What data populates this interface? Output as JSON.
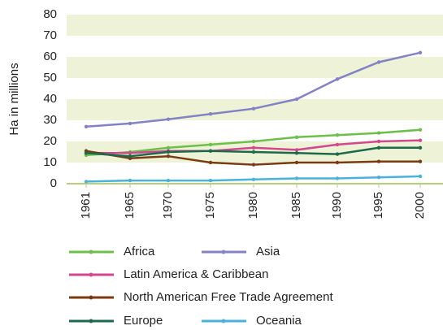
{
  "chart_data": {
    "type": "line",
    "y_label": "Ha in millions",
    "categories": [
      "1961",
      "1965",
      "1970",
      "1975",
      "1980",
      "1985",
      "1990",
      "1995",
      "2000"
    ],
    "ylim": [
      0,
      80
    ],
    "yticks": [
      0,
      10,
      20,
      30,
      40,
      50,
      60,
      70,
      80
    ],
    "grid": "bands",
    "series": [
      {
        "name": "Africa",
        "color": "#6cc04a",
        "values": [
          13.5,
          15,
          17,
          18.5,
          20,
          22,
          23,
          24,
          25.5
        ]
      },
      {
        "name": "Asia",
        "color": "#8282c4",
        "values": [
          27,
          28.5,
          30.5,
          33,
          35.5,
          40,
          49.5,
          57.5,
          62
        ]
      },
      {
        "name": "Latin America & Caribbean",
        "color": "#d2488e",
        "values": [
          14.5,
          14.5,
          15.5,
          15.5,
          17,
          16,
          18.5,
          20,
          20.5
        ]
      },
      {
        "name": "North American Free Trade Agreement",
        "color": "#7a3a12",
        "values": [
          15.5,
          12,
          13,
          10,
          9,
          10,
          10,
          10.5,
          10.5
        ]
      },
      {
        "name": "Europe",
        "color": "#1b6a4a",
        "values": [
          14.5,
          13,
          15,
          15.5,
          15,
          14.5,
          14,
          17,
          17
        ]
      },
      {
        "name": "Oceania",
        "color": "#4ab2da",
        "values": [
          1,
          1.5,
          1.5,
          1.5,
          2,
          2.5,
          2.5,
          3,
          3.5
        ]
      }
    ]
  }
}
